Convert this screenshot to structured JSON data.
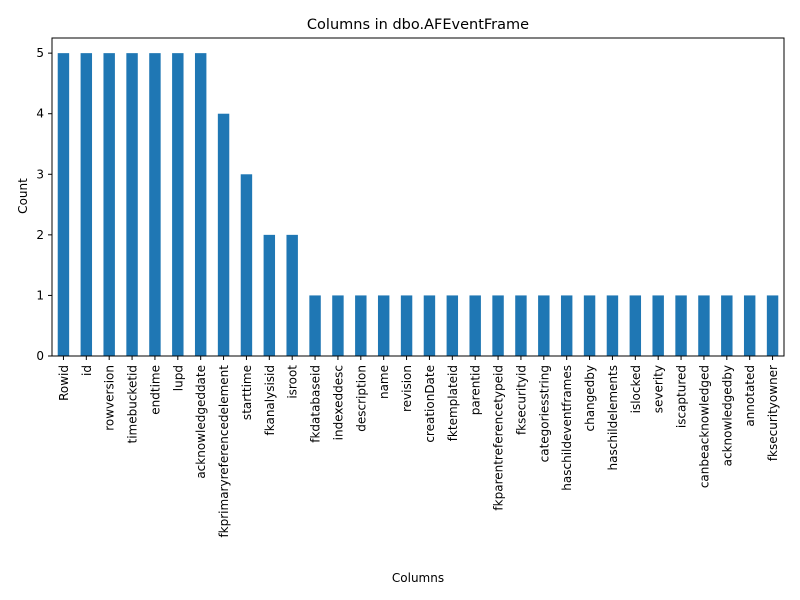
{
  "chart_data": {
    "type": "bar",
    "title": "Columns in dbo.AFEventFrame",
    "xlabel": "Columns",
    "ylabel": "Count",
    "ylim": [
      0,
      5.25
    ],
    "yticks": [
      0,
      1,
      2,
      3,
      4,
      5
    ],
    "grid": false,
    "bar_color": "#1f77b4",
    "categories": [
      "Rowid",
      "id",
      "rowversion",
      "timebucketid",
      "endtime",
      "lupd",
      "acknowledgeddate",
      "fkprimaryreferencedelement",
      "starttime",
      "fkanalysisid",
      "isroot",
      "fkdatabaseid",
      "indexeddesc",
      "description",
      "name",
      "revision",
      "creationDate",
      "fktemplateid",
      "parentid",
      "fkparentreferencetypeid",
      "fksecurityid",
      "categoriesstring",
      "haschildeventframes",
      "changedby",
      "haschildelements",
      "islocked",
      "severity",
      "iscaptured",
      "canbeacknowledged",
      "acknowledgedby",
      "annotated",
      "fksecurityowner"
    ],
    "values": [
      5,
      5,
      5,
      5,
      5,
      5,
      5,
      4,
      3,
      2,
      2,
      1,
      1,
      1,
      1,
      1,
      1,
      1,
      1,
      1,
      1,
      1,
      1,
      1,
      1,
      1,
      1,
      1,
      1,
      1,
      1,
      1
    ]
  }
}
